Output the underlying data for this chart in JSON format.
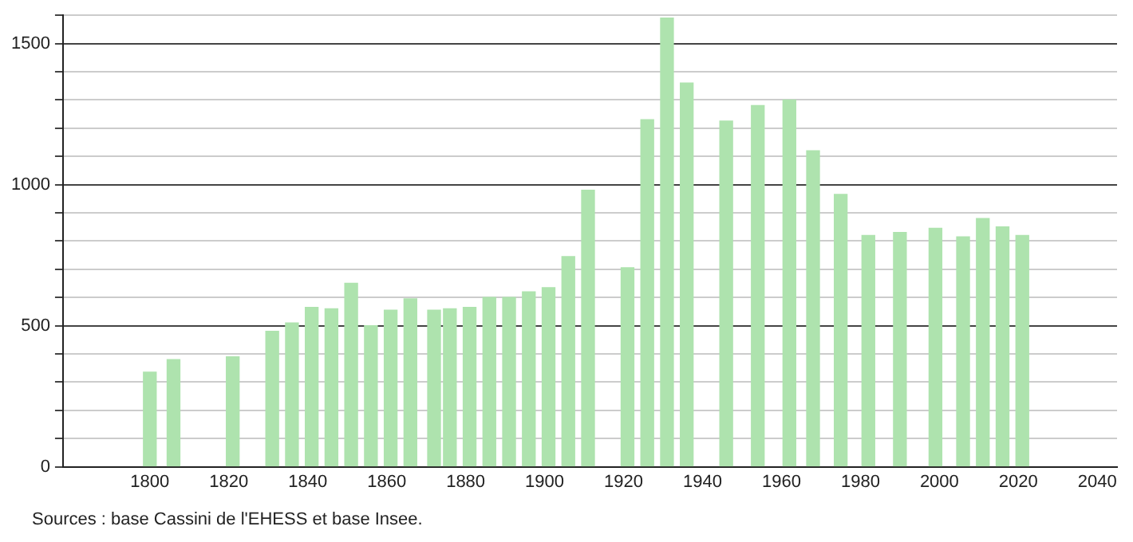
{
  "chart_data": {
    "type": "bar",
    "x": [
      1800,
      1806,
      1821,
      1831,
      1836,
      1841,
      1846,
      1851,
      1856,
      1861,
      1866,
      1872,
      1876,
      1881,
      1886,
      1891,
      1896,
      1901,
      1906,
      1911,
      1921,
      1926,
      1931,
      1936,
      1946,
      1954,
      1962,
      1968,
      1975,
      1982,
      1990,
      1999,
      2006,
      2011,
      2016,
      2021
    ],
    "values": [
      335,
      380,
      390,
      480,
      510,
      565,
      560,
      650,
      500,
      555,
      595,
      555,
      560,
      565,
      600,
      600,
      620,
      635,
      745,
      980,
      705,
      1230,
      1590,
      1360,
      1225,
      1280,
      1300,
      1120,
      965,
      820,
      830,
      845,
      815,
      880,
      850,
      820
    ],
    "color": "#aee3ae",
    "xlim": [
      1778,
      2045
    ],
    "xticks": [
      1800,
      1820,
      1840,
      1860,
      1880,
      1900,
      1920,
      1940,
      1960,
      1980,
      2000,
      2020,
      2040
    ],
    "ylim": [
      0,
      1600
    ],
    "yticks": [
      0,
      {
        "value": 100,
        "label": null
      },
      {
        "value": 200,
        "label": null
      },
      {
        "value": 300,
        "label": null
      },
      {
        "value": 400,
        "label": null
      },
      500,
      {
        "value": 600,
        "label": null
      },
      {
        "value": 700,
        "label": null
      },
      {
        "value": 800,
        "label": null
      },
      {
        "value": 900,
        "label": null
      },
      1000,
      {
        "value": 1100,
        "label": null
      },
      {
        "value": 1200,
        "label": null
      },
      {
        "value": 1300,
        "label": null
      },
      {
        "value": 1400,
        "label": null
      },
      1500,
      {
        "value": 1600,
        "label": null
      }
    ],
    "grid": "y",
    "legend": false,
    "annotations": [
      "Sources : base Cassini de l'EHESS et base Insee."
    ]
  }
}
